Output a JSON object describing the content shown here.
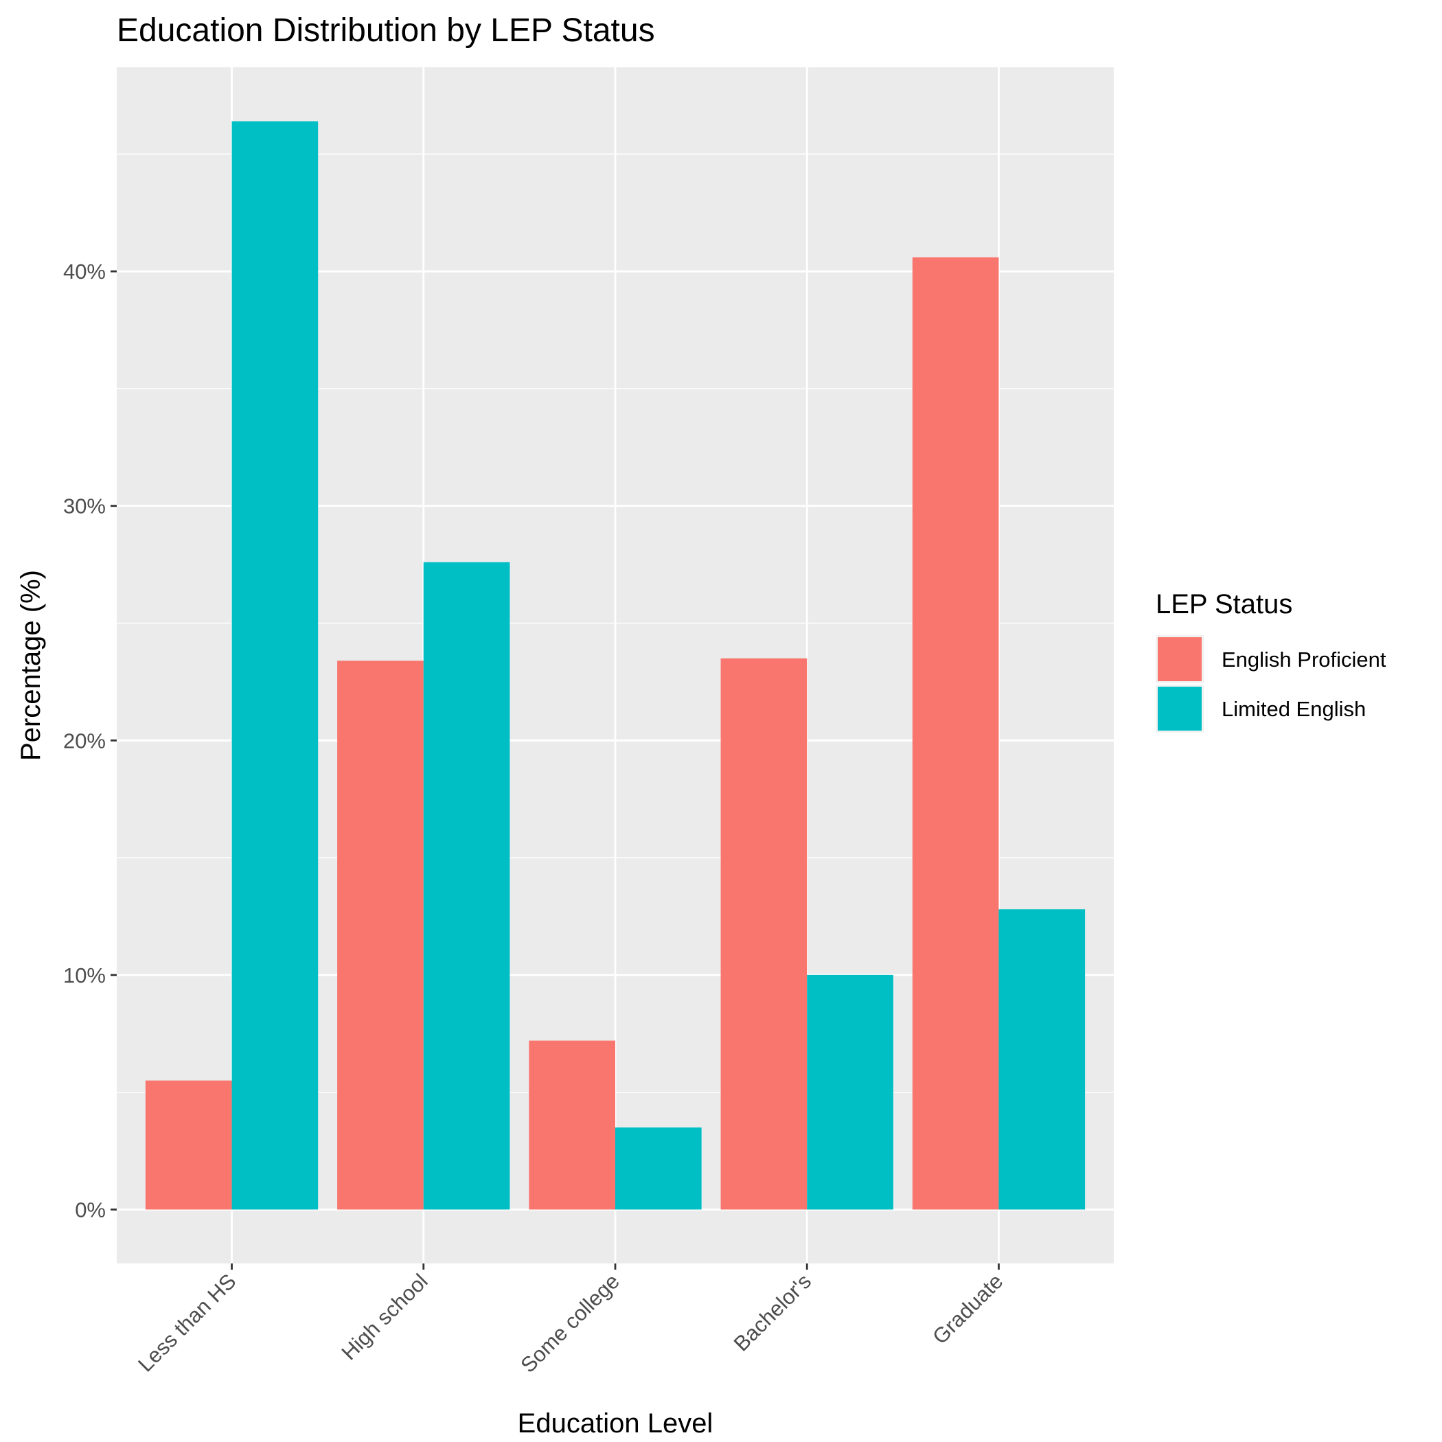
{
  "chart_data": {
    "type": "bar",
    "title": "Education Distribution by LEP Status",
    "xlabel": "Education Level",
    "ylabel": "Percentage (%)",
    "categories": [
      "Less than HS",
      "High school",
      "Some college",
      "Bachelor's",
      "Graduate"
    ],
    "series": [
      {
        "name": "English Proficient",
        "color": "#F8766D",
        "values": [
          5.5,
          23.4,
          7.2,
          23.5,
          40.6
        ]
      },
      {
        "name": "Limited English",
        "color": "#00BFC4",
        "values": [
          46.4,
          27.6,
          3.5,
          10.0,
          12.8
        ]
      }
    ],
    "ylim": [
      -2.3,
      48.7
    ],
    "yticks": [
      0,
      10,
      20,
      30,
      40
    ],
    "ytick_labels": [
      "0%",
      "10%",
      "20%",
      "30%",
      "40%"
    ],
    "grid": true,
    "panel_background": "#EBEBEB",
    "legend": {
      "title": "LEP Status",
      "position": "right"
    }
  }
}
